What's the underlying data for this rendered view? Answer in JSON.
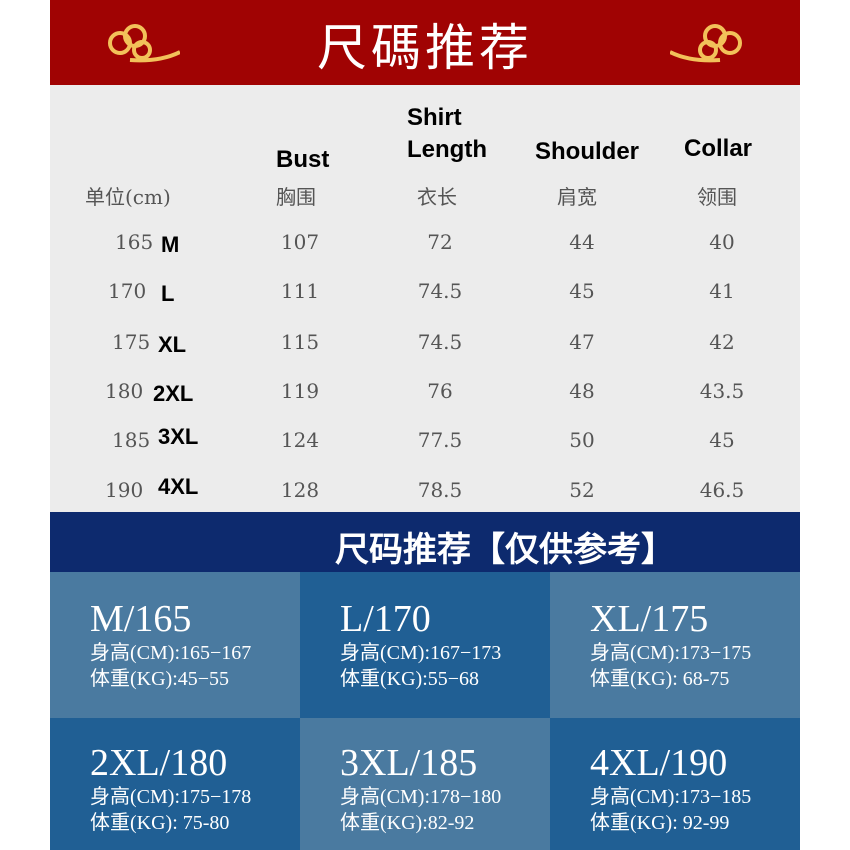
{
  "header": {
    "title": "尺碼推荐",
    "ornament": "gold-cloud-icon",
    "bg": "#a00303"
  },
  "table": {
    "unit_label": "单位(cm)",
    "columns": [
      {
        "en": "Bust",
        "zh": "胸围"
      },
      {
        "en": "Shirt Length",
        "zh": "衣长"
      },
      {
        "en": "Shoulder",
        "zh": "肩宽"
      },
      {
        "en": "Collar",
        "zh": "领围"
      }
    ],
    "rows": [
      {
        "height": "165",
        "size": "M",
        "values": [
          "107",
          "72",
          "44",
          "40"
        ]
      },
      {
        "height": "170",
        "size": "L",
        "values": [
          "111",
          "74.5",
          "45",
          "41"
        ]
      },
      {
        "height": "175",
        "size": "XL",
        "values": [
          "115",
          "74.5",
          "47",
          "42"
        ]
      },
      {
        "height": "180",
        "size": "2XL",
        "values": [
          "119",
          "76",
          "48",
          "43.5"
        ]
      },
      {
        "height": "185",
        "size": "3XL",
        "values": [
          "124",
          "77.5",
          "50",
          "45"
        ]
      },
      {
        "height": "190",
        "size": "4XL",
        "values": [
          "128",
          "78.5",
          "52",
          "46.5"
        ]
      }
    ]
  },
  "band": {
    "title": "尺码推荐【仅供参考】",
    "bg": "#0d2a6e"
  },
  "recommendations": [
    {
      "title": "M/165",
      "height": "身高(CM):165−167",
      "weight": "体重(KG):45−55"
    },
    {
      "title": "L/170",
      "height": "身高(CM):167−173",
      "weight": "体重(KG):55−68"
    },
    {
      "title": "XL/175",
      "height": "身高(CM):173−175",
      "weight": "体重(KG): 68-75"
    },
    {
      "title": "2XL/180",
      "height": "身高(CM):175−178",
      "weight": "体重(KG):  75-80"
    },
    {
      "title": "3XL/185",
      "height": "身高(CM):178−180",
      "weight": "体重(KG):82-92"
    },
    {
      "title": "4XL/190",
      "height": "身高(CM):173−185",
      "weight": "体重(KG): 92-99"
    }
  ]
}
